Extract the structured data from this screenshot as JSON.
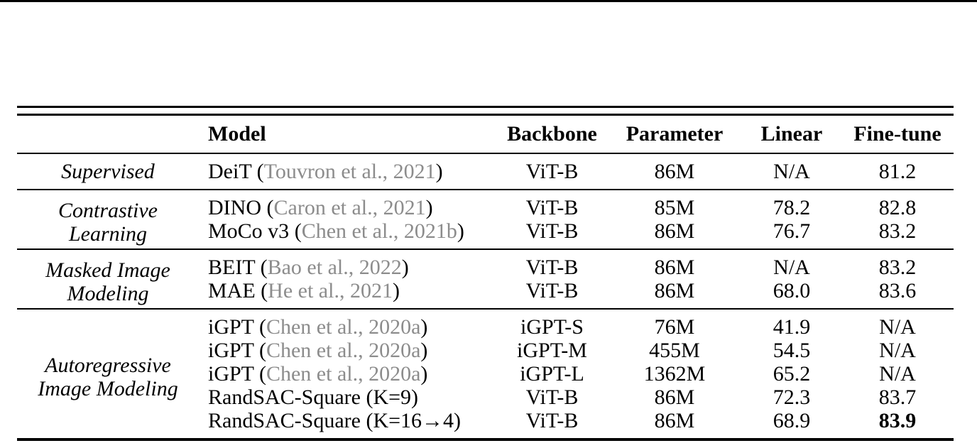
{
  "page": {
    "background": "#ffffff",
    "top_rule_color": "#000000",
    "text_color": "#000000",
    "citation_color": "#8c8c8c"
  },
  "table": {
    "headers": {
      "group": "",
      "model": "Model",
      "backbone": "Backbone",
      "parameter": "Parameter",
      "linear": "Linear",
      "finetune": "Fine-tune"
    },
    "groups": [
      {
        "label_lines": [
          "Supervised"
        ],
        "rows": [
          {
            "model": "DeiT",
            "cite_open": " (",
            "cite": "Touvron et al., 2021",
            "cite_close": ")",
            "backbone": "ViT-B",
            "parameter": "86M",
            "linear": "N/A",
            "finetune": "81.2"
          }
        ]
      },
      {
        "label_lines": [
          "Contrastive",
          "Learning"
        ],
        "rows": [
          {
            "model": "DINO",
            "cite_open": " (",
            "cite": "Caron et al., 2021",
            "cite_close": ")",
            "backbone": "ViT-B",
            "parameter": "85M",
            "linear": "78.2",
            "finetune": "82.8"
          },
          {
            "model": "MoCo v3",
            "cite_open": " (",
            "cite": "Chen et al., 2021b",
            "cite_close": ")",
            "backbone": "ViT-B",
            "parameter": "86M",
            "linear": "76.7",
            "finetune": "83.2"
          }
        ]
      },
      {
        "label_lines": [
          "Masked Image",
          "Modeling"
        ],
        "rows": [
          {
            "model": "BEIT",
            "cite_open": " (",
            "cite": "Bao et al., 2022",
            "cite_close": ")",
            "backbone": "ViT-B",
            "parameter": "86M",
            "linear": "N/A",
            "finetune": "83.2"
          },
          {
            "model": "MAE",
            "cite_open": " (",
            "cite": "He et al., 2021",
            "cite_close": ")",
            "backbone": "ViT-B",
            "parameter": "86M",
            "linear": "68.0",
            "finetune": "83.6"
          }
        ]
      },
      {
        "label_lines": [
          "Autoregressive",
          "Image Modeling"
        ],
        "rows": [
          {
            "model": "iGPT",
            "cite_open": " (",
            "cite": "Chen et al., 2020a",
            "cite_close": ")",
            "backbone": "iGPT-S",
            "parameter": "76M",
            "linear": "41.9",
            "finetune": "N/A"
          },
          {
            "model": "iGPT",
            "cite_open": " (",
            "cite": "Chen et al., 2020a",
            "cite_close": ")",
            "backbone": "iGPT-M",
            "parameter": "455M",
            "linear": "54.5",
            "finetune": "N/A"
          },
          {
            "model": "iGPT",
            "cite_open": " (",
            "cite": "Chen et al., 2020a",
            "cite_close": ")",
            "backbone": "iGPT-L",
            "parameter": "1362M",
            "linear": "65.2",
            "finetune": "N/A"
          },
          {
            "model": "RandSAC-Square (K=9)",
            "cite_open": "",
            "cite": "",
            "cite_close": "",
            "backbone": "ViT-B",
            "parameter": "86M",
            "linear": "72.3",
            "finetune": "83.7"
          },
          {
            "model": "RandSAC-Square (K=16→4)",
            "cite_open": "",
            "cite": "",
            "cite_close": "",
            "backbone": "ViT-B",
            "parameter": "86M",
            "linear": "68.9",
            "finetune": "83.9",
            "finetune_bold": true
          }
        ]
      }
    ]
  }
}
